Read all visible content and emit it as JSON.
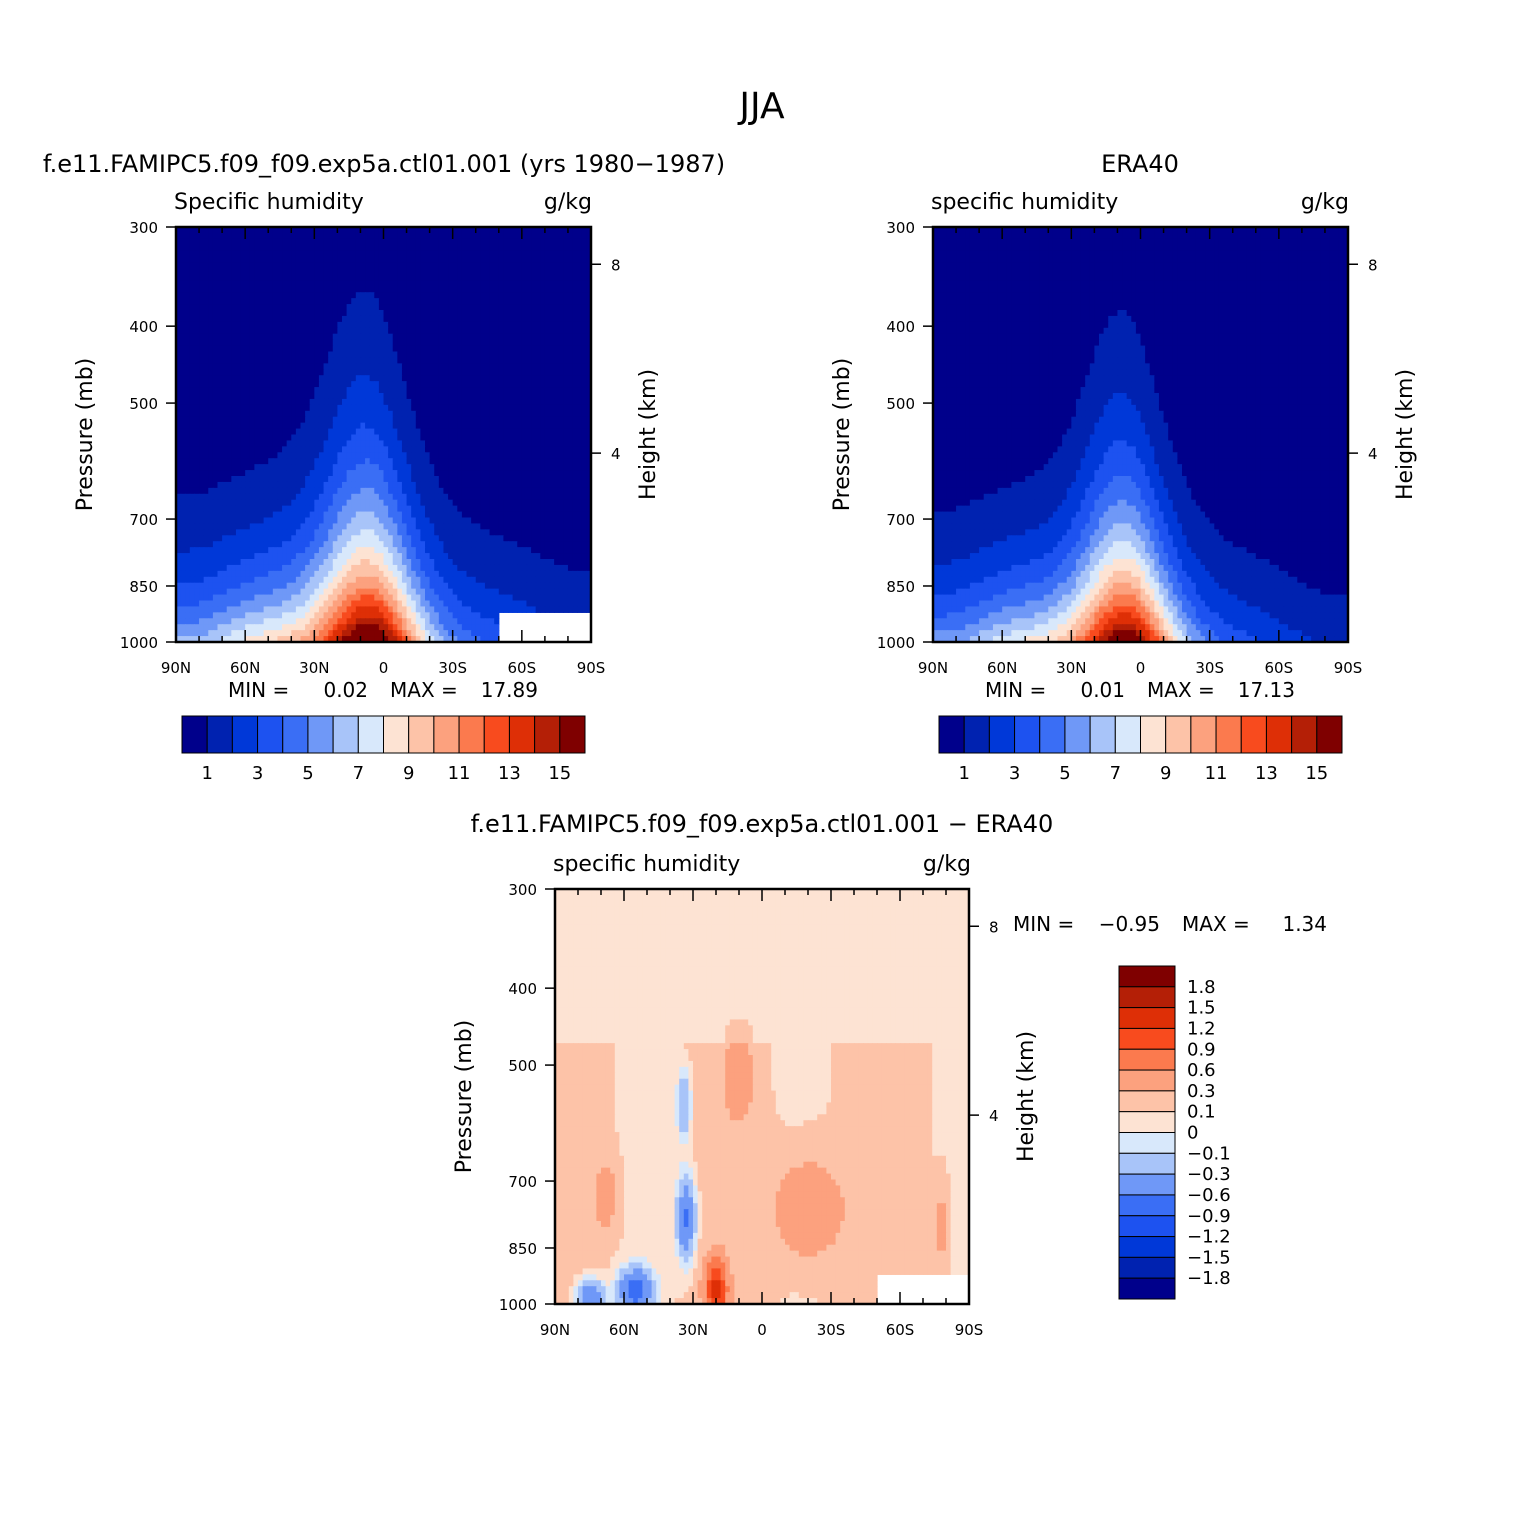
{
  "figure": {
    "title": "JJA"
  },
  "chart_data": [
    {
      "type": "heatmap",
      "id": "model",
      "title": "f.e11.FAMIPC5.f09_f09.exp5a.ctl01.001 (yrs 1980−1987)",
      "subtitle_left": "Specific humidity",
      "subtitle_right": "g/kg",
      "xlabel": "",
      "ylabel": "Pressure (mb)",
      "ylabel_right": "Height (km)",
      "x_ticks": [
        {
          "lat": 90,
          "label": "90N"
        },
        {
          "lat": 60,
          "label": "60N"
        },
        {
          "lat": 30,
          "label": "30N"
        },
        {
          "lat": 0,
          "label": "0"
        },
        {
          "lat": -30,
          "label": "30S"
        },
        {
          "lat": -60,
          "label": "60S"
        },
        {
          "lat": -90,
          "label": "90S"
        }
      ],
      "y_ticks": [
        {
          "p": 300,
          "label": "300"
        },
        {
          "p": 400,
          "label": "400"
        },
        {
          "p": 500,
          "label": "500"
        },
        {
          "p": 700,
          "label": "700"
        },
        {
          "p": 850,
          "label": "850"
        },
        {
          "p": 1000,
          "label": "1000"
        }
      ],
      "y_right_ticks": [
        {
          "km": 8,
          "label": "8"
        },
        {
          "km": 4,
          "label": "4"
        }
      ],
      "xlim": [
        90,
        -90
      ],
      "ylim": [
        300,
        1000
      ],
      "y_scale": "log",
      "min_label": "MIN =",
      "min_value": "0.02",
      "max_label": "MAX =",
      "max_value": "17.89",
      "colorbar_orientation": "horizontal",
      "colorbar_colors": [
        "#00008b",
        "#0022b0",
        "#0038d8",
        "#1d52f0",
        "#3a6ef5",
        "#6f98f7",
        "#a8c4f9",
        "#d8e8fb",
        "#fde3d3",
        "#fdc3a8",
        "#fca17e",
        "#fb7a4e",
        "#f84b1e",
        "#de2f06",
        "#b41f06",
        "#7f0000"
      ],
      "colorbar_labels": [
        "1",
        "3",
        "5",
        "7",
        "9",
        "11",
        "13",
        "15"
      ],
      "field": {
        "kind": "moisture",
        "peak_value": 17.89,
        "peak_lat": 10,
        "humid_width_deg": 24,
        "humid_width_shift": 0.04,
        "scale_height_km": 2.1,
        "nh_background": 0.7,
        "sh_background": 0.28,
        "bottom_missing_from_lat": -50,
        "bottom_missing_top_p": 925
      }
    },
    {
      "type": "heatmap",
      "id": "obs",
      "title": "ERA40",
      "subtitle_left": "specific humidity",
      "subtitle_right": "g/kg",
      "xlabel": "",
      "ylabel": "Pressure (mb)",
      "ylabel_right": "Height (km)",
      "x_ticks": [
        {
          "lat": 90,
          "label": "90N"
        },
        {
          "lat": 60,
          "label": "60N"
        },
        {
          "lat": 30,
          "label": "30N"
        },
        {
          "lat": 0,
          "label": "0"
        },
        {
          "lat": -30,
          "label": "30S"
        },
        {
          "lat": -60,
          "label": "60S"
        },
        {
          "lat": -90,
          "label": "90S"
        }
      ],
      "y_ticks": [
        {
          "p": 300,
          "label": "300"
        },
        {
          "p": 400,
          "label": "400"
        },
        {
          "p": 500,
          "label": "500"
        },
        {
          "p": 700,
          "label": "700"
        },
        {
          "p": 850,
          "label": "850"
        },
        {
          "p": 1000,
          "label": "1000"
        }
      ],
      "y_right_ticks": [
        {
          "km": 8,
          "label": "8"
        },
        {
          "km": 4,
          "label": "4"
        }
      ],
      "xlim": [
        90,
        -90
      ],
      "ylim": [
        300,
        1000
      ],
      "y_scale": "log",
      "min_label": "MIN =",
      "min_value": "0.01",
      "max_label": "MAX =",
      "max_value": "17.13",
      "colorbar_orientation": "horizontal",
      "colorbar_colors": [
        "#00008b",
        "#0022b0",
        "#0038d8",
        "#1d52f0",
        "#3a6ef5",
        "#6f98f7",
        "#a8c4f9",
        "#d8e8fb",
        "#fde3d3",
        "#fdc3a8",
        "#fca17e",
        "#fb7a4e",
        "#f84b1e",
        "#de2f06",
        "#b41f06",
        "#7f0000"
      ],
      "colorbar_labels": [
        "1",
        "3",
        "5",
        "7",
        "9",
        "11",
        "13",
        "15"
      ],
      "field": {
        "kind": "moisture",
        "peak_value": 17.13,
        "peak_lat": 10,
        "humid_width_deg": 22,
        "humid_width_shift": 0.04,
        "scale_height_km": 2.0,
        "nh_background": 0.65,
        "sh_background": 0.22,
        "bottom_missing_from_lat": null,
        "bottom_missing_top_p": null
      }
    },
    {
      "type": "heatmap",
      "id": "diff",
      "title": "f.e11.FAMIPC5.f09_f09.exp5a.ctl01.001 − ERA40",
      "subtitle_left": "specific humidity",
      "subtitle_right": "g/kg",
      "xlabel": "",
      "ylabel": "Pressure (mb)",
      "ylabel_right": "Height (km)",
      "x_ticks": [
        {
          "lat": 90,
          "label": "90N"
        },
        {
          "lat": 60,
          "label": "60N"
        },
        {
          "lat": 30,
          "label": "30N"
        },
        {
          "lat": 0,
          "label": "0"
        },
        {
          "lat": -30,
          "label": "30S"
        },
        {
          "lat": -60,
          "label": "60S"
        },
        {
          "lat": -90,
          "label": "90S"
        }
      ],
      "y_ticks": [
        {
          "p": 300,
          "label": "300"
        },
        {
          "p": 400,
          "label": "400"
        },
        {
          "p": 500,
          "label": "500"
        },
        {
          "p": 700,
          "label": "700"
        },
        {
          "p": 850,
          "label": "850"
        },
        {
          "p": 1000,
          "label": "1000"
        }
      ],
      "y_right_ticks": [
        {
          "km": 8,
          "label": "8"
        },
        {
          "km": 4,
          "label": "4"
        }
      ],
      "xlim": [
        90,
        -90
      ],
      "ylim": [
        300,
        1000
      ],
      "y_scale": "log",
      "min_label": "MIN =",
      "min_value": "−0.95",
      "max_label": "MAX =",
      "max_value": "1.34",
      "colorbar_orientation": "vertical",
      "colorbar_colors": [
        "#7f0000",
        "#b41f06",
        "#de2f06",
        "#f84b1e",
        "#fb7a4e",
        "#fca17e",
        "#fdc3a8",
        "#fde3d3",
        "#d8e8fb",
        "#a8c4f9",
        "#6f98f7",
        "#3a6ef5",
        "#1d52f0",
        "#0038d8",
        "#0022b0",
        "#00008b"
      ],
      "colorbar_labels": [
        "1.8",
        "1.5",
        "1.2",
        "0.9",
        "0.6",
        "0.3",
        "0.1",
        "0",
        "−0.1",
        "−0.3",
        "−0.6",
        "−0.9",
        "−1.2",
        "−1.5",
        "−1.8"
      ],
      "field": {
        "kind": "difference",
        "bottom_missing_from_lat": -50,
        "bottom_missing_top_p": 925,
        "features": [
          {
            "lat": 33,
            "p": 780,
            "amp": -0.75,
            "wlat": 4,
            "wlogp": 0.12
          },
          {
            "lat": 34,
            "p": 560,
            "amp": -0.45,
            "wlat": 3,
            "wlogp": 0.1
          },
          {
            "lat": 75,
            "p": 980,
            "amp": -0.7,
            "wlat": 6,
            "wlogp": 0.05
          },
          {
            "lat": 55,
            "p": 960,
            "amp": -0.9,
            "wlat": 7,
            "wlogp": 0.06
          },
          {
            "lat": 20,
            "p": 960,
            "amp": 1.2,
            "wlat": 5,
            "wlogp": 0.09
          },
          {
            "lat": 10,
            "p": 520,
            "amp": 0.45,
            "wlat": 6,
            "wlogp": 0.12
          },
          {
            "lat": -20,
            "p": 760,
            "amp": 0.5,
            "wlat": 15,
            "wlogp": 0.15
          },
          {
            "lat": 68,
            "p": 730,
            "amp": 0.4,
            "wlat": 5,
            "wlogp": 0.1
          },
          {
            "lat": -78,
            "p": 800,
            "amp": 0.35,
            "wlat": 3,
            "wlogp": 0.12
          }
        ]
      }
    }
  ]
}
